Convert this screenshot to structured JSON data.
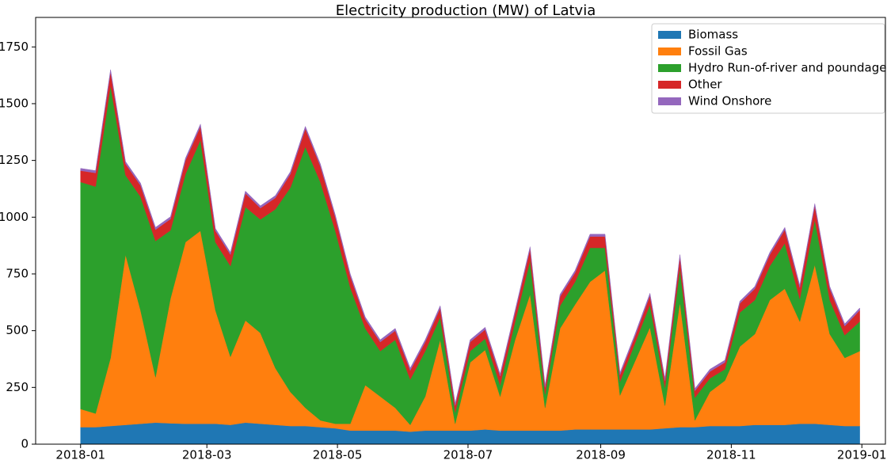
{
  "chart_data": {
    "type": "stacked-area",
    "title": "Electricity production (MW) of Latvia",
    "x": [
      0,
      7,
      14,
      21,
      28,
      35,
      42,
      49,
      56,
      63,
      70,
      77,
      84,
      91,
      98,
      105,
      112,
      119,
      126,
      133,
      140,
      147,
      154,
      161,
      168,
      175,
      182,
      189,
      196,
      203,
      210,
      217,
      224,
      231,
      238,
      245,
      252,
      259,
      266,
      273,
      280,
      287,
      294,
      301,
      308,
      315,
      322,
      329,
      336,
      343,
      350,
      357,
      364
    ],
    "xlim": [
      -21,
      376
    ],
    "xticks": [
      {
        "value": 0,
        "label": "2018-01"
      },
      {
        "value": 59,
        "label": "2018-03"
      },
      {
        "value": 120,
        "label": "2018-05"
      },
      {
        "value": 181,
        "label": "2018-07"
      },
      {
        "value": 243,
        "label": "2018-09"
      },
      {
        "value": 304,
        "label": "2018-11"
      },
      {
        "value": 365,
        "label": "2019-01"
      }
    ],
    "ylim": [
      0,
      1880
    ],
    "yticks": [
      0,
      250,
      500,
      750,
      1000,
      1250,
      1500,
      1750
    ],
    "legend": "upper right",
    "series": [
      {
        "name": "Biomass",
        "color": "#1f77b4",
        "values": [
          75,
          75,
          80,
          85,
          90,
          95,
          92,
          90,
          90,
          90,
          85,
          95,
          90,
          85,
          80,
          80,
          75,
          70,
          60,
          60,
          60,
          60,
          55,
          60,
          60,
          60,
          60,
          65,
          60,
          60,
          60,
          60,
          60,
          65,
          65,
          65,
          65,
          65,
          65,
          70,
          75,
          75,
          80,
          80,
          80,
          85,
          85,
          85,
          90,
          90,
          85,
          80,
          80
        ]
      },
      {
        "name": "Fossil Gas",
        "color": "#ff7f0e",
        "values": [
          80,
          60,
          300,
          750,
          500,
          200,
          550,
          800,
          850,
          500,
          300,
          450,
          400,
          250,
          150,
          80,
          30,
          20,
          30,
          200,
          150,
          100,
          30,
          150,
          400,
          30,
          300,
          350,
          150,
          400,
          600,
          100,
          450,
          550,
          650,
          700,
          150,
          300,
          450,
          100,
          550,
          30,
          150,
          200,
          350,
          400,
          550,
          600,
          450,
          700,
          400,
          300,
          330
        ]
      },
      {
        "name": "Hydro Run-of-river and poundage",
        "color": "#2ca02c",
        "values": [
          1000,
          1000,
          1200,
          350,
          500,
          600,
          300,
          300,
          400,
          300,
          400,
          500,
          500,
          700,
          900,
          1150,
          1050,
          850,
          600,
          250,
          200,
          300,
          200,
          200,
          100,
          50,
          50,
          50,
          50,
          80,
          150,
          60,
          100,
          100,
          150,
          100,
          60,
          80,
          100,
          80,
          150,
          100,
          60,
          50,
          150,
          150,
          150,
          200,
          100,
          200,
          150,
          100,
          130
        ]
      },
      {
        "name": "Other",
        "color": "#d62728",
        "values": [
          50,
          60,
          60,
          50,
          50,
          50,
          50,
          60,
          60,
          50,
          50,
          60,
          50,
          50,
          60,
          80,
          70,
          60,
          50,
          40,
          40,
          40,
          40,
          40,
          40,
          30,
          40,
          40,
          40,
          40,
          50,
          30,
          40,
          40,
          50,
          50,
          30,
          30,
          40,
          30,
          50,
          30,
          30,
          30,
          40,
          50,
          50,
          60,
          50,
          60,
          50,
          40,
          50
        ]
      },
      {
        "name": "Wind Onshore",
        "color": "#9467bd",
        "values": [
          10,
          10,
          10,
          10,
          10,
          10,
          10,
          10,
          10,
          10,
          10,
          10,
          10,
          10,
          10,
          10,
          10,
          10,
          10,
          10,
          10,
          10,
          10,
          10,
          10,
          10,
          10,
          10,
          10,
          10,
          10,
          10,
          10,
          10,
          10,
          10,
          10,
          10,
          10,
          10,
          10,
          10,
          10,
          10,
          10,
          10,
          10,
          10,
          10,
          10,
          10,
          10,
          10
        ]
      }
    ]
  }
}
